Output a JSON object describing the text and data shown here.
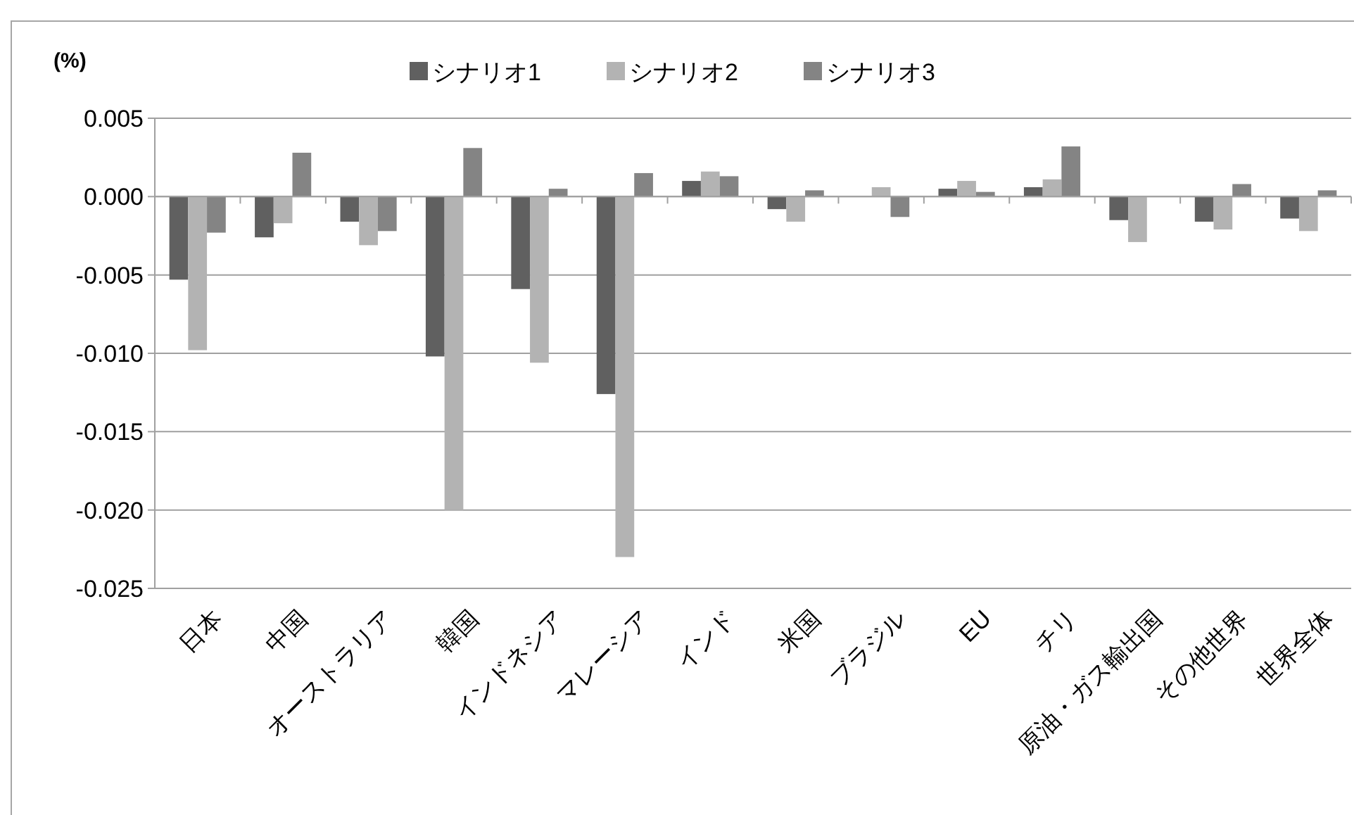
{
  "chart_data": {
    "type": "bar",
    "ylabel": "(%)",
    "categories": [
      "日本",
      "中国",
      "オーストラリア",
      "韓国",
      "インドネシア",
      "マレーシア",
      "インド",
      "米国",
      "ブラジル",
      "EU",
      "チリ",
      "原油・ガス輸出国",
      "その他世界",
      "世界全体"
    ],
    "series": [
      {
        "name": "シナリオ1",
        "color": "#606060",
        "values": [
          -0.0053,
          -0.0026,
          -0.0016,
          -0.0102,
          -0.0059,
          -0.0126,
          0.001,
          -0.0008,
          0,
          0.0005,
          0.0006,
          -0.0015,
          -0.0016,
          -0.0014
        ]
      },
      {
        "name": "シナリオ2",
        "color": "#b3b3b3",
        "values": [
          -0.0098,
          -0.0017,
          -0.0031,
          -0.02,
          -0.0106,
          -0.023,
          0.0016,
          -0.0016,
          0.0006,
          0.001,
          0.0011,
          -0.0029,
          -0.0021,
          -0.0022
        ]
      },
      {
        "name": "シナリオ3",
        "color": "#848484",
        "values": [
          -0.0023,
          0.0028,
          -0.0022,
          0.0031,
          0.0005,
          0.0015,
          0.0013,
          0.0004,
          -0.0013,
          0.0003,
          0.0032,
          0,
          0.0008,
          0.0004
        ]
      }
    ],
    "ylim": [
      -0.025,
      0.005
    ],
    "yticks": [
      {
        "value": -0.025,
        "label": "-0.025"
      },
      {
        "value": -0.02,
        "label": "-0.020"
      },
      {
        "value": -0.015,
        "label": "-0.015"
      },
      {
        "value": -0.01,
        "label": "-0.010"
      },
      {
        "value": -0.005,
        "label": "-0.005"
      },
      {
        "value": 0,
        "label": "0.000"
      },
      {
        "value": 0.005,
        "label": "0.005"
      }
    ],
    "grid": "y",
    "legend": "top"
  }
}
